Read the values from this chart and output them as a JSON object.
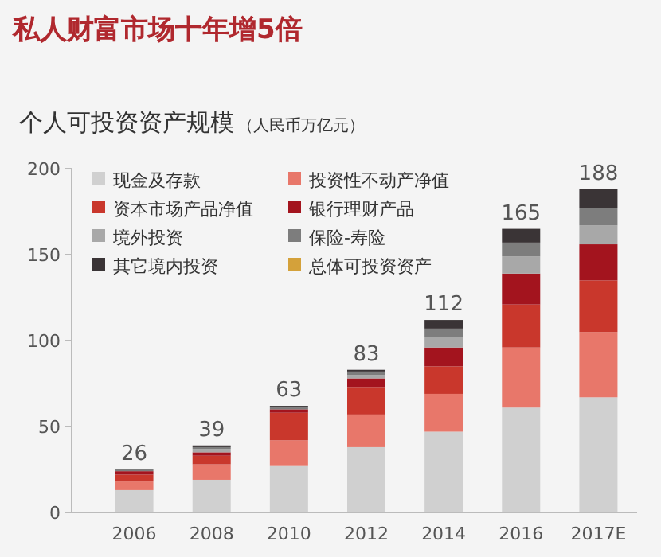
{
  "chart_data": {
    "type": "bar",
    "stacked": true,
    "title": "私人财富市场十年增5倍",
    "subtitle": "个人可投资资产规模",
    "ylabel": "（人民币万亿元）",
    "categories": [
      "2006",
      "2008",
      "2010",
      "2012",
      "2014",
      "2016",
      "2017E"
    ],
    "series": [
      {
        "name": "现金及存款",
        "color": "#d0d0d0",
        "values": [
          13,
          19,
          27,
          38,
          47,
          61,
          67
        ]
      },
      {
        "name": "投资性不动产净值",
        "color": "#e8776a",
        "values": [
          5,
          9,
          15,
          19,
          22,
          35,
          38
        ]
      },
      {
        "name": "资本市场产品净值",
        "color": "#c9372c",
        "values": [
          4,
          5,
          16,
          16,
          16,
          25,
          30
        ]
      },
      {
        "name": "银行理财产品",
        "color": "#a3141e",
        "values": [
          2,
          2,
          2,
          5,
          11,
          18,
          21
        ]
      },
      {
        "name": "境外投资",
        "color": "#a8a8a8",
        "values": [
          null,
          2,
          null,
          2,
          6,
          10,
          11
        ]
      },
      {
        "name": "保险-寿险",
        "color": "#7d7d7d",
        "values": [
          1,
          1,
          1,
          2,
          5,
          8,
          10
        ]
      },
      {
        "name": "其它境内投资",
        "color": "#3a3436",
        "values": [
          0,
          1,
          1,
          1,
          5,
          8,
          11
        ]
      },
      {
        "name": "总体可投资资产",
        "color": "#d4a13a",
        "values": [
          null,
          null,
          null,
          null,
          null,
          null,
          null
        ]
      }
    ],
    "totals": [
      "26",
      "39",
      "63",
      "83",
      "112",
      "165",
      "188"
    ],
    "ylim": [
      0,
      200
    ],
    "yticks": [
      0,
      50,
      100,
      150,
      200
    ],
    "grid": false,
    "legend": "top left"
  }
}
